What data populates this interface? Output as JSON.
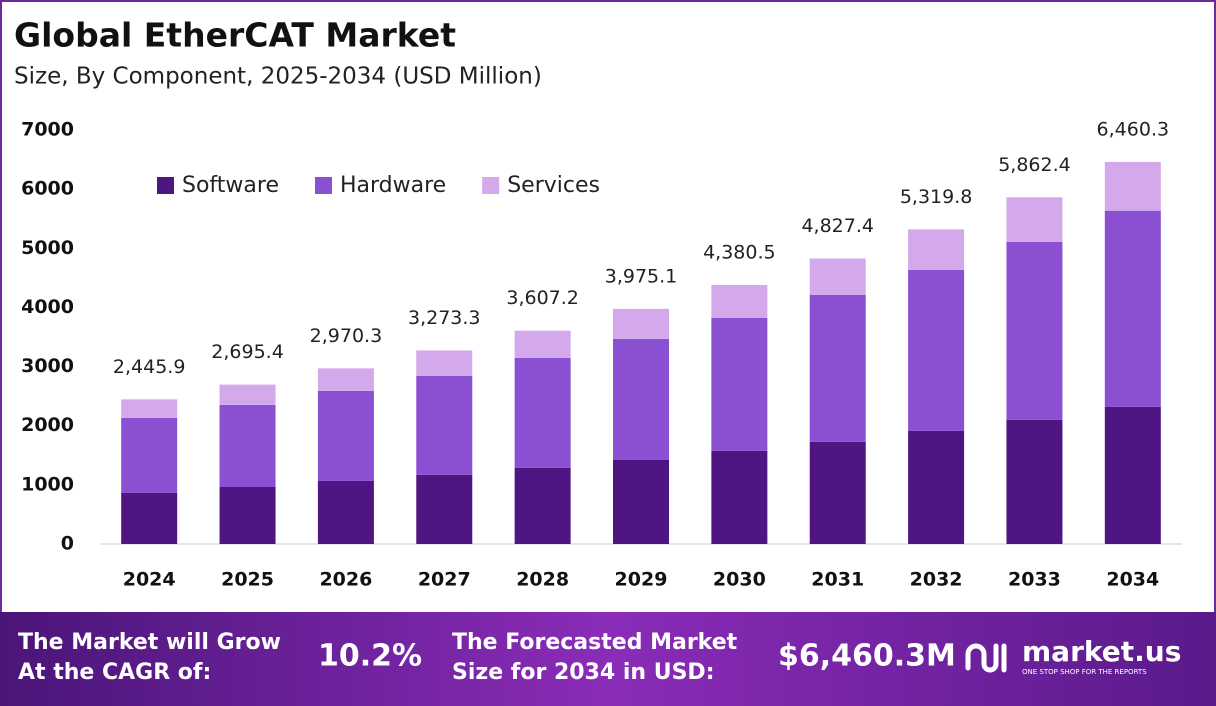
{
  "chart_data": {
    "type": "stacked-bar",
    "title": "Global EtherCAT Market",
    "subtitle": "Size, By Component, 2025-2034 (USD Million)",
    "categories": [
      "2024",
      "2025",
      "2026",
      "2027",
      "2028",
      "2029",
      "2030",
      "2031",
      "2032",
      "2033",
      "2034"
    ],
    "series": [
      {
        "name": "Software",
        "color": "#4f1583",
        "values": [
          863,
          964,
          1066,
          1168,
          1286,
          1421,
          1574,
          1726,
          1912,
          2098,
          2318
        ]
      },
      {
        "name": "Hardware",
        "color": "#8b4fd1",
        "values": [
          1269,
          1388,
          1523,
          1675,
          1861,
          2048,
          2250,
          2487,
          2724,
          3012,
          3317
        ]
      },
      {
        "name": "Services",
        "color": "#d4a9ec",
        "values": [
          313.9,
          343.4,
          381.3,
          430.3,
          460.2,
          506.1,
          556.5,
          614.4,
          683.8,
          752.4,
          825.3
        ]
      }
    ],
    "totals": {
      "values": [
        2445.9,
        2695.4,
        2970.3,
        3273.3,
        3607.2,
        3975.1,
        4380.5,
        4827.4,
        5319.8,
        5862.4,
        6460.3
      ],
      "value_labels": [
        "2,445.9",
        "2,695.4",
        "2,970.3",
        "3,273.3",
        "3,607.2",
        "3,975.1",
        "4,380.5",
        "4,827.4",
        "5,319.8",
        "5,862.4",
        "6,460.3"
      ]
    },
    "ylim": [
      0,
      7000
    ],
    "yticks": [
      0,
      1000,
      2000,
      3000,
      4000,
      5000,
      6000,
      7000
    ],
    "grid": false,
    "legend": "top-left"
  },
  "footer": {
    "cagr_label": [
      "The Market will Grow",
      "At the CAGR of:"
    ],
    "cagr_value": "10.2%",
    "forecast_label": [
      "The Forecasted Market",
      "Size for 2034 in USD:"
    ],
    "forecast_value": "$6,460.3M",
    "brand": "market.us",
    "tagline": "ONE STOP SHOP FOR THE REPORTS"
  }
}
